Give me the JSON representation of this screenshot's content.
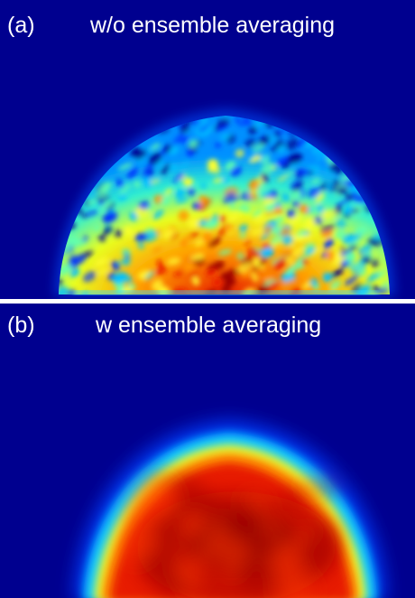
{
  "panels": [
    {
      "letter": "(a)",
      "title": "w/o ensemble averaging"
    },
    {
      "letter": "(b)",
      "title": "w ensemble averaging"
    }
  ],
  "colormap": {
    "background": "#00008f",
    "stops": [
      "#00008f",
      "#0000ff",
      "#00b4ff",
      "#41ffbe",
      "#ffff00",
      "#ff8c00",
      "#e61400",
      "#8b0000"
    ]
  },
  "separator_color": "#ffffff"
}
